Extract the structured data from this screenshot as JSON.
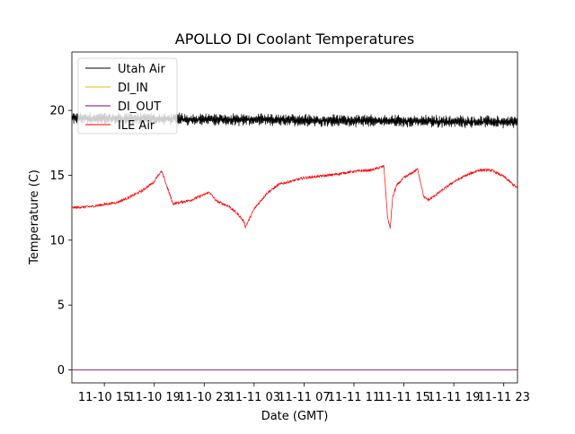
{
  "chart_data": {
    "type": "line",
    "title": "APOLLO DI Coolant Temperatures",
    "xlabel": "Date (GMT)",
    "ylabel": "Temperature (C)",
    "xlim": [
      12.4,
      48.1
    ],
    "ylim": [
      -1,
      24.5
    ],
    "yticks": [
      0,
      5,
      10,
      15,
      20
    ],
    "xticks": [
      {
        "hours": 15,
        "label": "11-10 15"
      },
      {
        "hours": 19,
        "label": "11-10 19"
      },
      {
        "hours": 23,
        "label": "11-10 23"
      },
      {
        "hours": 27,
        "label": "11-11 03"
      },
      {
        "hours": 31,
        "label": "11-11 07"
      },
      {
        "hours": 35,
        "label": "11-11 11"
      },
      {
        "hours": 39,
        "label": "11-11 15"
      },
      {
        "hours": 43,
        "label": "11-11 19"
      },
      {
        "hours": 47,
        "label": "11-11 23"
      }
    ],
    "legend_position": "top-left",
    "series": [
      {
        "name": "Utah Air",
        "color": "#000000",
        "mean": 19.3,
        "noise": 0.45,
        "x": [
          12.4,
          48.1
        ],
        "y": [
          19.4,
          19.1
        ]
      },
      {
        "name": "DI_IN",
        "color": "#e6b800",
        "mean": 0.0,
        "noise": 0.0,
        "x": [
          12.4,
          48.1
        ],
        "y": [
          0.0,
          0.0
        ]
      },
      {
        "name": "DI_OUT",
        "color": "#800080",
        "mean": 0.0,
        "noise": 0.0,
        "x": [
          12.4,
          48.1
        ],
        "y": [
          0.0,
          0.0
        ]
      },
      {
        "name": "ILE Air",
        "color": "#ff0000",
        "noise": 0.12,
        "x": [
          12.4,
          14,
          16,
          17,
          18,
          19,
          19.2,
          19.6,
          20.5,
          22,
          23.2,
          23.4,
          24,
          25,
          25.8,
          26.2,
          26.3,
          27,
          28,
          29,
          31,
          33,
          35,
          36.4,
          37.4,
          37.45,
          37.7,
          37.9,
          38.1,
          38.4,
          39,
          40,
          40.1,
          40.6,
          41,
          42,
          43,
          44,
          45,
          46,
          47,
          48.1
        ],
        "y": [
          12.5,
          12.6,
          12.9,
          13.3,
          13.8,
          14.5,
          14.9,
          15.3,
          12.8,
          13.1,
          13.6,
          13.7,
          13.0,
          12.6,
          11.9,
          11.4,
          11.0,
          12.4,
          13.6,
          14.3,
          14.8,
          15.0,
          15.3,
          15.4,
          15.7,
          15.0,
          11.7,
          10.9,
          13.3,
          14.2,
          14.8,
          15.4,
          15.5,
          13.3,
          13.1,
          13.8,
          14.5,
          15.0,
          15.4,
          15.4,
          14.9,
          14.0
        ]
      }
    ]
  }
}
